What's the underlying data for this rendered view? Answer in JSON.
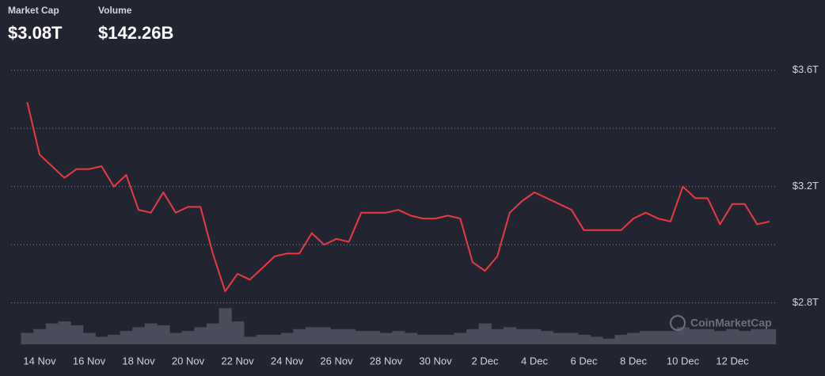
{
  "header": {
    "market_cap_label": "Market Cap",
    "market_cap_value": "$3.08T",
    "volume_label": "Volume",
    "volume_value": "$142.26B"
  },
  "chart_data": {
    "type": "line",
    "watermark": "CoinMarketCap",
    "categories": [
      null,
      "14 Nov",
      null,
      null,
      null,
      "16 Nov",
      null,
      null,
      null,
      "18 Nov",
      null,
      null,
      null,
      "20 Nov",
      null,
      null,
      null,
      "22 Nov",
      null,
      null,
      null,
      "24 Nov",
      null,
      null,
      null,
      "26 Nov",
      null,
      null,
      null,
      "28 Nov",
      null,
      null,
      null,
      "30 Nov",
      null,
      null,
      null,
      "2 Dec",
      null,
      null,
      null,
      "4 Dec",
      null,
      null,
      null,
      "6 Dec",
      null,
      null,
      null,
      "8 Dec",
      null,
      null,
      null,
      "10 Dec",
      null,
      null,
      null,
      "12 Dec",
      null,
      null,
      null
    ],
    "series": [
      {
        "name": "Market Cap",
        "color": "#ea3943",
        "values": [
          3.49,
          3.31,
          3.27,
          3.23,
          3.26,
          3.26,
          3.27,
          3.2,
          3.24,
          3.12,
          3.11,
          3.18,
          3.11,
          3.13,
          3.13,
          2.97,
          2.84,
          2.9,
          2.88,
          2.92,
          2.96,
          2.97,
          2.97,
          3.04,
          3.0,
          3.02,
          3.01,
          3.11,
          3.11,
          3.11,
          3.12,
          3.1,
          3.09,
          3.09,
          3.1,
          3.09,
          2.94,
          2.91,
          2.96,
          3.11,
          3.15,
          3.18,
          3.16,
          3.14,
          3.12,
          3.05,
          3.05,
          3.05,
          3.05,
          3.09,
          3.11,
          3.09,
          3.08,
          3.2,
          3.16,
          3.16,
          3.07,
          3.14,
          3.14,
          3.07,
          3.08
        ]
      },
      {
        "name": "Volume",
        "color": "#4a4e5c",
        "values": [
          30,
          40,
          55,
          60,
          50,
          30,
          20,
          25,
          35,
          45,
          55,
          50,
          30,
          35,
          45,
          55,
          95,
          60,
          20,
          25,
          25,
          30,
          40,
          45,
          45,
          40,
          40,
          35,
          35,
          30,
          35,
          30,
          25,
          25,
          25,
          30,
          40,
          55,
          40,
          45,
          40,
          40,
          35,
          30,
          30,
          25,
          20,
          15,
          25,
          30,
          35,
          35,
          35,
          45,
          40,
          40,
          35,
          40,
          35,
          40,
          40
        ]
      }
    ],
    "ylim": [
      2.78,
      3.64
    ],
    "yticks": [
      {
        "value": 2.8,
        "label": "$2.8T"
      },
      {
        "value": 3.2,
        "label": "$3.2T"
      },
      {
        "value": 3.6,
        "label": "$3.6T"
      }
    ],
    "unlabeled_gridlines": [
      3.0,
      3.4
    ],
    "volume_lim": [
      0,
      100
    ],
    "grid": true
  }
}
